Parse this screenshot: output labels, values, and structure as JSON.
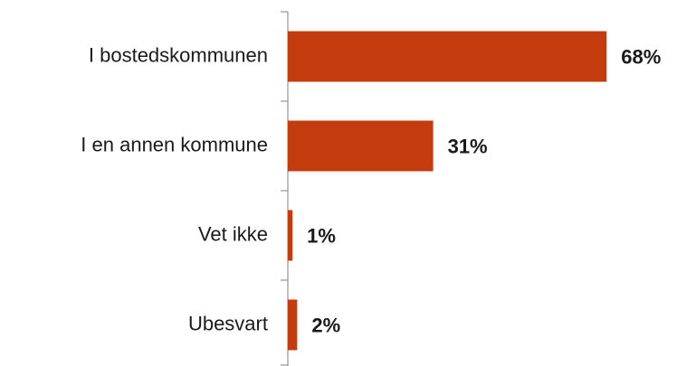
{
  "chart_data": {
    "type": "bar",
    "orientation": "horizontal",
    "categories": [
      "I bostedskommunen",
      "I en annen kommune",
      "Vet ikke",
      "Ubesvart"
    ],
    "values": [
      68,
      31,
      1,
      2
    ],
    "value_labels": [
      "68%",
      "31%",
      "1%",
      "2%"
    ],
    "color": "#c43b0e",
    "xlim": [
      0,
      100
    ]
  }
}
